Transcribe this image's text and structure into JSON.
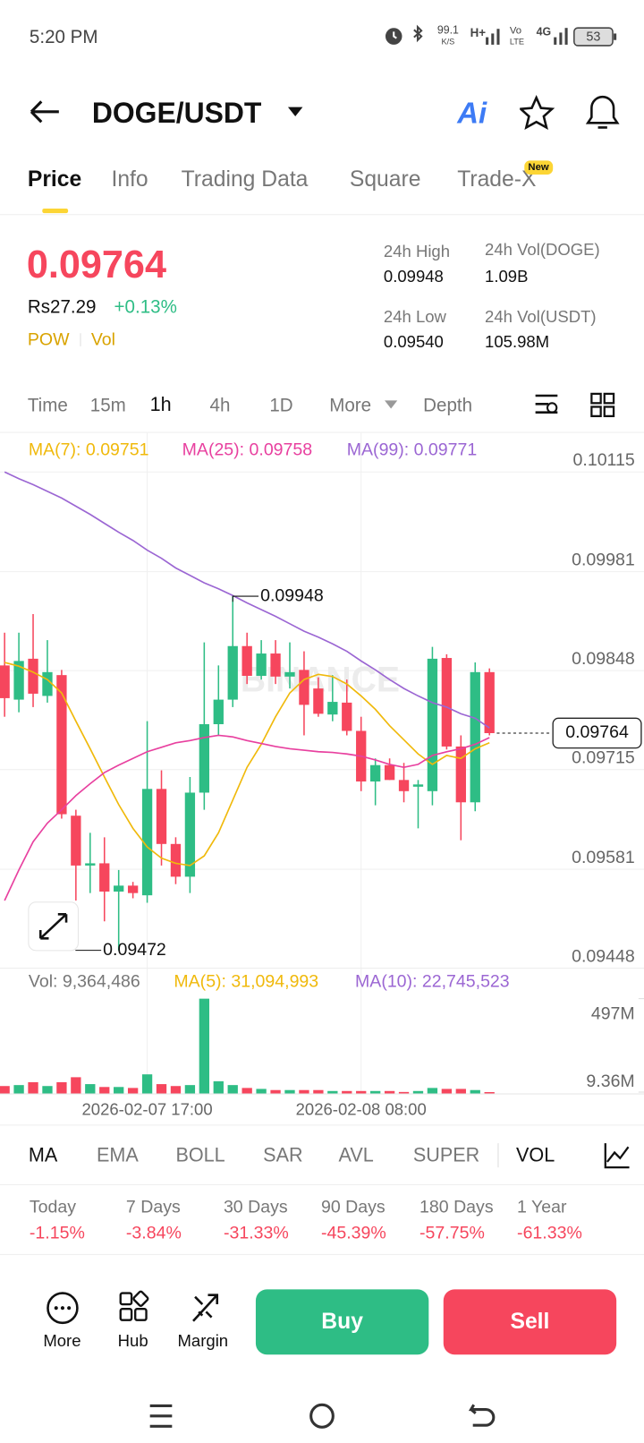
{
  "status_bar": {
    "time": "5:20 PM",
    "net_speed": "99.1",
    "net_unit": "K/S",
    "net_type": "H+",
    "volte": [
      "Vo",
      "LTE"
    ],
    "net_gen": "4G",
    "battery": "53"
  },
  "header": {
    "pair": "DOGE/USDT",
    "ai": "Ai"
  },
  "tabs": {
    "items": [
      "Price",
      "Info",
      "Trading Data",
      "Square",
      "Trade-X"
    ],
    "badge": "New"
  },
  "ticker": {
    "price": "0.09764",
    "local_price": "Rs27.29",
    "change": "+0.13%",
    "tags": [
      "POW",
      "Vol"
    ],
    "stats": [
      {
        "label": "24h High",
        "value": "0.09948"
      },
      {
        "label": "24h Vol(DOGE)",
        "value": "1.09B"
      },
      {
        "label": "24h Low",
        "value": "0.09540"
      },
      {
        "label": "24h Vol(USDT)",
        "value": "105.98M"
      }
    ]
  },
  "intervals": [
    "Time",
    "15m",
    "1h",
    "4h",
    "1D",
    "More",
    "Depth"
  ],
  "chart_data": [
    {
      "type": "candlestick",
      "watermark": "BINANCE",
      "categories": [
        null,
        null,
        null,
        null,
        null,
        null,
        null,
        null,
        null,
        null,
        "2026-02-07 17:00",
        null,
        null,
        null,
        null,
        null,
        null,
        null,
        null,
        null,
        null,
        null,
        null,
        null,
        null,
        "2026-02-08 08:00",
        null,
        null,
        null,
        null,
        null,
        null,
        null,
        null,
        null
      ],
      "open": [
        0.09855,
        0.09809,
        0.09864,
        0.09814,
        0.09842,
        0.09653,
        0.09586,
        0.09589,
        0.09551,
        0.09559,
        0.09546,
        0.09689,
        0.09615,
        0.09571,
        0.09684,
        0.09776,
        0.09809,
        0.09881,
        0.09841,
        0.09871,
        0.0984,
        0.09849,
        0.09824,
        0.09789,
        0.09805,
        0.09767,
        0.09699,
        0.09721,
        0.09701,
        0.09692,
        0.09686,
        0.09865,
        0.09746,
        0.09671,
        0.09846
      ],
      "high": [
        0.09899,
        0.09899,
        0.09924,
        0.09889,
        0.09849,
        0.09661,
        0.0963,
        0.09624,
        0.0958,
        0.09564,
        0.0978,
        0.09714,
        0.09624,
        0.09705,
        0.09886,
        0.09855,
        0.09948,
        0.09899,
        0.09889,
        0.09889,
        0.09886,
        0.09874,
        0.09839,
        0.09842,
        0.09836,
        0.09786,
        0.0973,
        0.0973,
        0.09724,
        0.09701,
        0.0988,
        0.0987,
        0.09761,
        0.09859,
        0.09851
      ],
      "low": [
        0.09786,
        0.09792,
        0.09799,
        0.09805,
        0.09649,
        0.09539,
        0.09549,
        0.09511,
        0.09472,
        0.09542,
        0.09536,
        0.09586,
        0.09561,
        0.09549,
        0.09661,
        0.09761,
        0.09799,
        0.0983,
        0.09836,
        0.0983,
        0.09824,
        0.09761,
        0.09786,
        0.0978,
        0.09761,
        0.09686,
        0.09667,
        0.09701,
        0.09671,
        0.09636,
        0.09667,
        0.09742,
        0.0962,
        0.09659,
        0.09761
      ],
      "close": [
        0.09811,
        0.09861,
        0.09817,
        0.09846,
        0.09655,
        0.09586,
        0.09589,
        0.09551,
        0.09559,
        0.09549,
        0.09689,
        0.09615,
        0.09571,
        0.09684,
        0.09776,
        0.09809,
        0.09881,
        0.09841,
        0.09871,
        0.0984,
        0.09846,
        0.09802,
        0.0979,
        0.09806,
        0.09767,
        0.09699,
        0.09721,
        0.09701,
        0.09686,
        0.09695,
        0.09864,
        0.09746,
        0.09671,
        0.09846,
        0.09764
      ],
      "up_color": "#2ebd85",
      "down_color": "#f6465d",
      "series": [
        {
          "name": "MA(7): 0.09751",
          "color": "#f0b90b",
          "values": [
            0.09859,
            0.09854,
            0.09846,
            0.09836,
            0.09818,
            0.0978,
            0.09743,
            0.09705,
            0.09668,
            0.09636,
            0.09611,
            0.09596,
            0.09589,
            0.09586,
            0.09599,
            0.0963,
            0.09674,
            0.09718,
            0.09749,
            0.09786,
            0.09818,
            0.09836,
            0.09843,
            0.0984,
            0.0983,
            0.09814,
            0.09796,
            0.09774,
            0.09755,
            0.09736,
            0.09722,
            0.09734,
            0.0973,
            0.09743,
            0.09751
          ]
        },
        {
          "name": "MA(25): 0.09758",
          "color": "#e8409f",
          "values": [
            0.09539,
            0.0958,
            0.09618,
            0.09643,
            0.09661,
            0.0968,
            0.09696,
            0.09711,
            0.09721,
            0.0973,
            0.09739,
            0.09745,
            0.09751,
            0.09754,
            0.09758,
            0.09761,
            0.09759,
            0.09754,
            0.0975,
            0.09746,
            0.09743,
            0.09741,
            0.09739,
            0.09738,
            0.09736,
            0.09733,
            0.09728,
            0.09722,
            0.09718,
            0.09722,
            0.09734,
            0.09739,
            0.09743,
            0.09749,
            0.09758
          ]
        },
        {
          "name": "MA(99): 0.09771",
          "color": "#9b66d3",
          "values": [
            0.10115,
            0.10106,
            0.10098,
            0.10089,
            0.1008,
            0.10069,
            0.10058,
            0.10046,
            0.10034,
            0.10023,
            0.1001,
            0.09999,
            0.09986,
            0.09976,
            0.09966,
            0.09958,
            0.09949,
            0.09939,
            0.0993,
            0.09921,
            0.09911,
            0.09901,
            0.09893,
            0.09884,
            0.09874,
            0.09861,
            0.09849,
            0.09836,
            0.09824,
            0.09814,
            0.09805,
            0.09799,
            0.0979,
            0.09784,
            0.09771
          ]
        }
      ],
      "ylim": [
        0.09448,
        0.10115
      ],
      "yticks": [
        0.10115,
        0.09981,
        0.09848,
        0.09715,
        0.09581,
        0.09448
      ],
      "grid": true,
      "high_marker": 0.09948,
      "low_marker": 0.09472,
      "current_price": 0.09764
    },
    {
      "type": "bar",
      "legend": [
        {
          "label": "Vol: 9,364,486",
          "color": "#777777"
        },
        {
          "label": "MA(5): 31,094,993",
          "color": "#f0b90b"
        },
        {
          "label": "MA(10): 22,745,523",
          "color": "#9b66d3"
        }
      ],
      "values": [
        41000000,
        46000000,
        61000000,
        41000000,
        61000000,
        87000000,
        51000000,
        36000000,
        36000000,
        31000000,
        102000000,
        51000000,
        41000000,
        46000000,
        497000000,
        66000000,
        46000000,
        31000000,
        26000000,
        20000000,
        20000000,
        20000000,
        20000000,
        15000000,
        15000000,
        15000000,
        15000000,
        15000000,
        10000000,
        15000000,
        31000000,
        26000000,
        26000000,
        20000000,
        9364486
      ],
      "ylim": [
        0,
        520000000
      ],
      "yticks": [
        {
          "value": 497000000,
          "label": "497M"
        },
        {
          "value": 9364486,
          "label": "9.36M"
        }
      ]
    }
  ],
  "indicator_tabs": [
    "MA",
    "EMA",
    "BOLL",
    "SAR",
    "AVL",
    "SUPER",
    "VOL"
  ],
  "performance": [
    {
      "label": "Today",
      "value": "-1.15%"
    },
    {
      "label": "7 Days",
      "value": "-3.84%"
    },
    {
      "label": "30 Days",
      "value": "-31.33%"
    },
    {
      "label": "90 Days",
      "value": "-45.39%"
    },
    {
      "label": "180 Days",
      "value": "-57.75%"
    },
    {
      "label": "1 Year",
      "value": "-61.33%"
    }
  ],
  "actions": [
    "More",
    "Hub",
    "Margin"
  ],
  "buy": "Buy",
  "sell": "Sell"
}
